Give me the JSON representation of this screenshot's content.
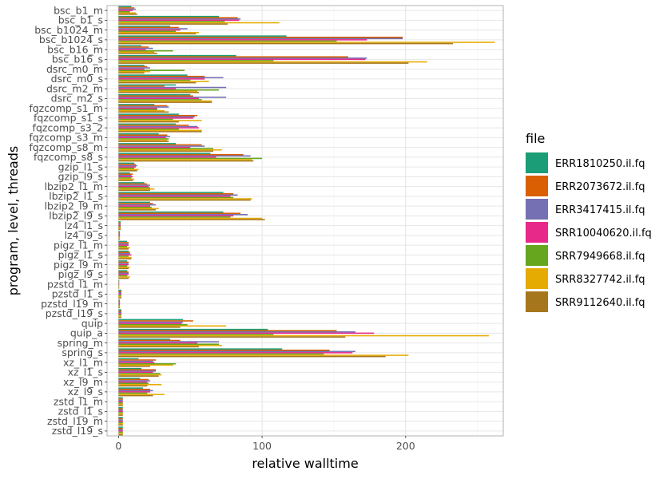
{
  "chart_data": {
    "type": "bar",
    "orientation": "horizontal",
    "xlabel": "relative walltime",
    "ylabel": "program, level, threads",
    "xlim": [
      -8,
      268
    ],
    "xticks": [
      0,
      100,
      200
    ],
    "grid": true,
    "legend": {
      "title": "file",
      "placement": "right"
    },
    "categories": [
      "bsc_b1_m",
      "bsc_b1_s",
      "bsc_b1024_m",
      "bsc_b1024_s",
      "bsc_b16_m",
      "bsc_b16_s",
      "dsrc_m0_m",
      "dsrc_m0_s",
      "dsrc_m2_m",
      "dsrc_m2_s",
      "fqzcomp_s1_m",
      "fqzcomp_s1_s",
      "fqzcomp_s3_2",
      "fqzcomp_s3_m",
      "fqzcomp_s8_m",
      "fqzcomp_s8_s",
      "gzip_l1_s",
      "gzip_l9_s",
      "lbzip2_l1_m",
      "lbzip2_l1_s",
      "lbzip2_l9_m",
      "lbzip2_l9_s",
      "lz4_l1_s",
      "lz4_l9_s",
      "pigz_l1_m",
      "pigz_l1_s",
      "pigz_l9_m",
      "pigz_l9_s",
      "pzstd_l1_m",
      "pzstd_l1_s",
      "pzstd_l19_m",
      "pzstd_l19_s",
      "quip",
      "quip_a",
      "spring_m",
      "spring_s",
      "xz_l1_m",
      "xz_l1_s",
      "xz_l9_m",
      "xz_l9_s",
      "zstd_l1_m",
      "zstd_l1_s",
      "zstd_l19_m",
      "zstd_l19_s"
    ],
    "series": [
      {
        "name": "ERR1810250.il.fq",
        "color": "#1B9E77",
        "values": [
          9,
          70,
          36,
          117,
          16,
          82,
          18,
          48,
          40,
          50,
          25,
          42,
          40,
          28,
          40,
          64,
          11,
          8,
          18,
          73,
          22,
          73,
          1.5,
          1,
          6,
          7,
          6,
          6,
          0.5,
          2,
          1,
          2,
          45,
          104,
          36,
          114,
          14,
          16,
          15,
          17,
          3,
          3,
          3,
          3
        ]
      },
      {
        "name": "ERR2073672.il.fq",
        "color": "#D95F02",
        "values": [
          11,
          83,
          42,
          198,
          21,
          160,
          20,
          60,
          32,
          52,
          34,
          55,
          49,
          34,
          58,
          87,
          12,
          10,
          20,
          80,
          24,
          85,
          1.5,
          1,
          7,
          8,
          7,
          7,
          0.5,
          2,
          1,
          2,
          52,
          152,
          43,
          147,
          26,
          26,
          21,
          22,
          3,
          3,
          3,
          3
        ]
      },
      {
        "name": "ERR3417415.il.fq",
        "color": "#7570B3",
        "values": [
          12,
          85,
          48,
          198,
          24,
          173,
          22,
          73,
          75,
          75,
          35,
          53,
          55,
          36,
          60,
          92,
          13,
          9,
          22,
          83,
          26,
          90,
          1.5,
          1,
          7,
          8,
          7,
          7,
          0.5,
          2,
          1,
          2,
          45,
          165,
          70,
          165,
          24,
          26,
          22,
          24,
          3,
          3,
          3,
          3
        ]
      },
      {
        "name": "SRR10040620.il.fq",
        "color": "#E7298A",
        "values": [
          10,
          84,
          43,
          173,
          19,
          172,
          18,
          60,
          40,
          56,
          27,
          52,
          56,
          33,
          50,
          68,
          12,
          10,
          21,
          78,
          22,
          80,
          1.5,
          1,
          7,
          9,
          7,
          7,
          0.5,
          2,
          1,
          2,
          44,
          178,
          55,
          163,
          25,
          24,
          20,
          22,
          3,
          3,
          3,
          3
        ]
      },
      {
        "name": "SRR7949668.il.fq",
        "color": "#66A61E",
        "values": [
          8,
          74,
          40,
          152,
          38,
          108,
          46,
          50,
          70,
          58,
          27,
          38,
          42,
          35,
          66,
          100,
          11,
          9,
          22,
          80,
          23,
          78,
          1.5,
          1,
          6,
          7,
          6,
          6,
          0.5,
          2,
          1,
          2,
          48,
          108,
          70,
          143,
          40,
          29,
          21,
          20,
          3,
          3,
          3,
          3
        ]
      },
      {
        "name": "SRR8327742.il.fq",
        "color": "#E6AB02",
        "values": [
          12,
          112,
          56,
          262,
          25,
          215,
          22,
          63,
          55,
          65,
          32,
          58,
          58,
          34,
          72,
          93,
          14,
          11,
          25,
          93,
          28,
          100,
          1.5,
          1,
          8,
          9,
          8,
          8,
          0.5,
          2,
          1,
          2,
          75,
          258,
          72,
          202,
          38,
          30,
          30,
          32,
          3,
          3,
          3,
          3
        ]
      },
      {
        "name": "SRR9112640.il.fq",
        "color": "#A6761D",
        "values": [
          13,
          76,
          54,
          233,
          27,
          202,
          18,
          54,
          56,
          65,
          35,
          42,
          58,
          35,
          66,
          94,
          13,
          10,
          22,
          92,
          26,
          102,
          1.5,
          1,
          7,
          9,
          7,
          7,
          0.5,
          2,
          1,
          2,
          43,
          158,
          56,
          186,
          22,
          28,
          20,
          24,
          3,
          3,
          3,
          3
        ]
      }
    ]
  }
}
